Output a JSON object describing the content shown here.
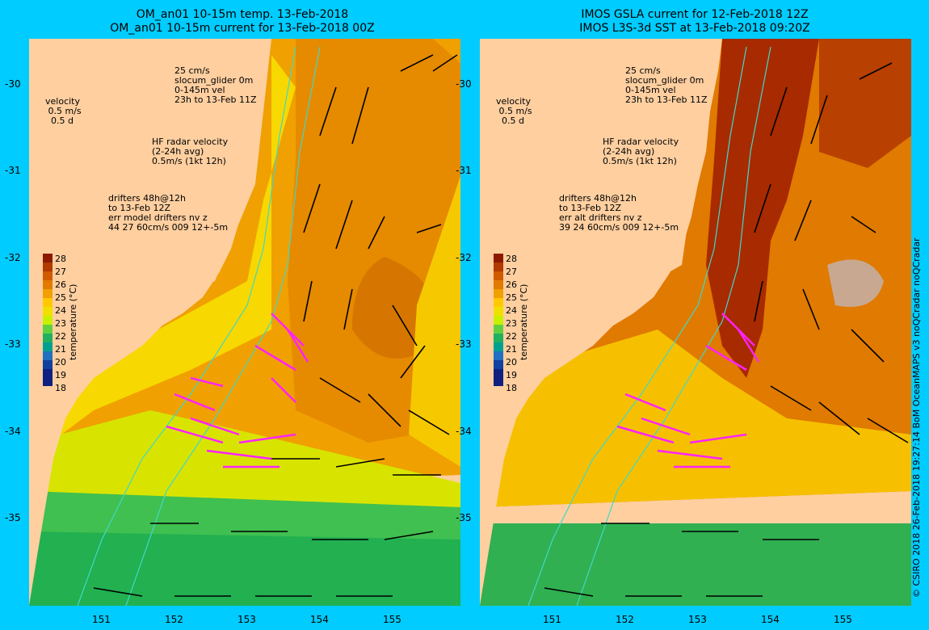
{
  "left": {
    "title1": "OM_an01 10-15m temp. 13-Feb-2018",
    "title2": "OM_an01 10-15m current for 13-Feb-2018 00Z",
    "legend_scale": "25 cm/s\nslocum_glider 0m\n0-145m vel\n23h to 13-Feb 11Z",
    "velocity": "velocity\n 0.5 m/s\n  0.5 d",
    "hf": "HF radar velocity\n(2-24h avg)\n0.5m/s (1kt 12h)",
    "drifters": "drifters 48h@12h\nto 13-Feb 12Z\nerr model drifters nv z\n44 27 60cm/s 009 12+-5m"
  },
  "right": {
    "title1": "IMOS GSLA current for 12-Feb-2018 12Z",
    "title2": "IMOS L3S-3d SST at 13-Feb-2018 09:20Z",
    "legend_scale": "25 cm/s\nslocum_glider 0m\n0-145m vel\n23h to 13-Feb 11Z",
    "velocity": "velocity\n 0.5 m/s\n  0.5 d",
    "hf": "HF radar velocity\n(2-24h avg)\n0.5m/s (1kt 12h)",
    "drifters": "drifters 48h@12h\nto 13-Feb 12Z\nerr alt drifters nv z\n39 24 60cm/s 009 12+-5m"
  },
  "axes": {
    "lat_labels": [
      "-30",
      "-31",
      "-32",
      "-33",
      "-34",
      "-35"
    ],
    "lon_labels": [
      "151",
      "152",
      "153",
      "154",
      "155"
    ]
  },
  "colorbar": {
    "ticks": [
      "28",
      "27",
      "26",
      "25",
      "24",
      "23",
      "22",
      "21",
      "20",
      "19",
      "18"
    ],
    "label": "temperature (°C)",
    "colors": [
      "#8B1A00",
      "#B03A00",
      "#D05A00",
      "#E07A00",
      "#F0A000",
      "#FFC800",
      "#F0E000",
      "#C8F000",
      "#60D040",
      "#20B060",
      "#00A090",
      "#2070C0",
      "#1040A0",
      "#102080"
    ]
  },
  "credit": "© CSIRO 2018   26-Feb-2018 19:27:14 BoM OceanMAPS v3 noQCradar noQCradar",
  "colors": {
    "background": "#00CCFF",
    "land": "#FFCFA0",
    "drifter": "#FF22FF",
    "glider": "#2244CC"
  }
}
